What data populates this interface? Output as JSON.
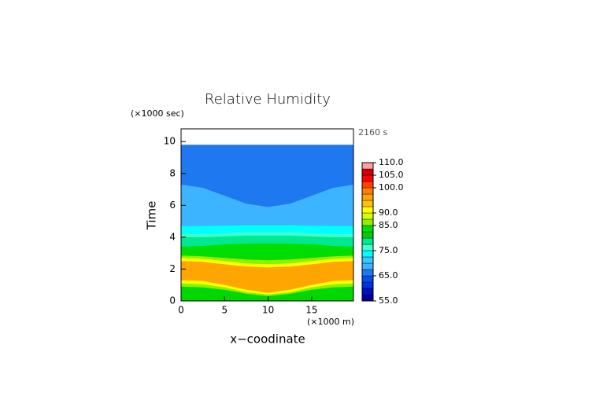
{
  "chart_data": {
    "type": "contour",
    "title": "Relative Humidity",
    "y_unit": "(×1000 sec)",
    "annotation": "2160 s",
    "ylabel": "Time",
    "x_unit": "(×1000 m)",
    "xlabel": "x−coodinate",
    "xlim": [
      0,
      19.8
    ],
    "ylim": [
      0,
      10.8
    ],
    "xticks": [
      0,
      5,
      10,
      15
    ],
    "yticks": [
      0,
      2,
      4,
      6,
      8,
      10
    ],
    "x": [
      0,
      2.5,
      5,
      7.5,
      10,
      12.5,
      15,
      17.5,
      19.8
    ],
    "series": [
      {
        "color": "#00d800",
        "values": [
          0.9,
          0.85,
          0.7,
          0.45,
          0.3,
          0.45,
          0.7,
          0.85,
          0.9
        ]
      },
      {
        "color": "#90f000",
        "values": [
          1.1,
          1.05,
          0.85,
          0.55,
          0.4,
          0.55,
          0.85,
          1.05,
          1.1
        ]
      },
      {
        "color": "#ffff00",
        "values": [
          1.3,
          1.25,
          1.0,
          0.7,
          0.5,
          0.7,
          1.0,
          1.25,
          1.3
        ]
      },
      {
        "color": "#ffa500",
        "values": [
          2.5,
          2.45,
          2.3,
          2.15,
          2.1,
          2.15,
          2.3,
          2.45,
          2.5
        ]
      },
      {
        "color": "#ffff00",
        "values": [
          2.7,
          2.65,
          2.5,
          2.35,
          2.3,
          2.35,
          2.5,
          2.65,
          2.7
        ]
      },
      {
        "color": "#90f000",
        "values": [
          2.85,
          2.8,
          2.7,
          2.6,
          2.55,
          2.6,
          2.7,
          2.8,
          2.85
        ]
      },
      {
        "color": "#00dd00",
        "values": [
          3.4,
          3.45,
          3.55,
          3.6,
          3.6,
          3.6,
          3.55,
          3.45,
          3.4
        ]
      },
      {
        "color": "#00e890",
        "values": [
          4.0,
          4.0,
          4.05,
          4.1,
          4.1,
          4.1,
          4.05,
          4.0,
          4.0
        ]
      },
      {
        "color": "#40ffd0",
        "values": [
          4.2,
          4.2,
          4.25,
          4.3,
          4.3,
          4.3,
          4.25,
          4.2,
          4.2
        ]
      },
      {
        "color": "#00ffff",
        "values": [
          4.7,
          4.7,
          4.72,
          4.75,
          4.75,
          4.75,
          4.72,
          4.7,
          4.7
        ]
      },
      {
        "color": "#3cb4ff",
        "values": [
          7.3,
          7.1,
          6.6,
          6.1,
          5.9,
          6.1,
          6.6,
          7.1,
          7.3
        ]
      },
      {
        "color": "#1e78f0",
        "values": [
          9.8,
          9.8,
          9.8,
          9.8,
          9.8,
          9.8,
          9.8,
          9.8,
          9.8
        ]
      }
    ],
    "colorbar": {
      "levels": [
        55,
        57.5,
        60,
        62.5,
        65,
        67.5,
        70,
        72.5,
        75,
        77.5,
        80,
        82.5,
        85,
        87.5,
        90,
        92.5,
        95,
        97.5,
        100,
        102.5,
        105,
        107.5,
        110
      ],
      "colors": [
        "#0000a0",
        "#0010c0",
        "#0030e0",
        "#0050f0",
        "#1e78f0",
        "#3cb4ff",
        "#3cc8ff",
        "#00ffff",
        "#40ffd0",
        "#00e890",
        "#00d000",
        "#00e000",
        "#90f000",
        "#d8ff00",
        "#ffff00",
        "#ffc000",
        "#ffa500",
        "#ff8000",
        "#ff4000",
        "#ff0000",
        "#d00000",
        "#ffa0a0"
      ],
      "ticks": [
        {
          "value": 55,
          "label": "55.0"
        },
        {
          "value": 65,
          "label": "65.0"
        },
        {
          "value": 75,
          "label": "75.0"
        },
        {
          "value": 85,
          "label": "85.0"
        },
        {
          "value": 90,
          "label": "90.0"
        },
        {
          "value": 100,
          "label": "100.0"
        },
        {
          "value": 105,
          "label": "105.0"
        },
        {
          "value": 110,
          "label": "110.0"
        }
      ]
    }
  }
}
